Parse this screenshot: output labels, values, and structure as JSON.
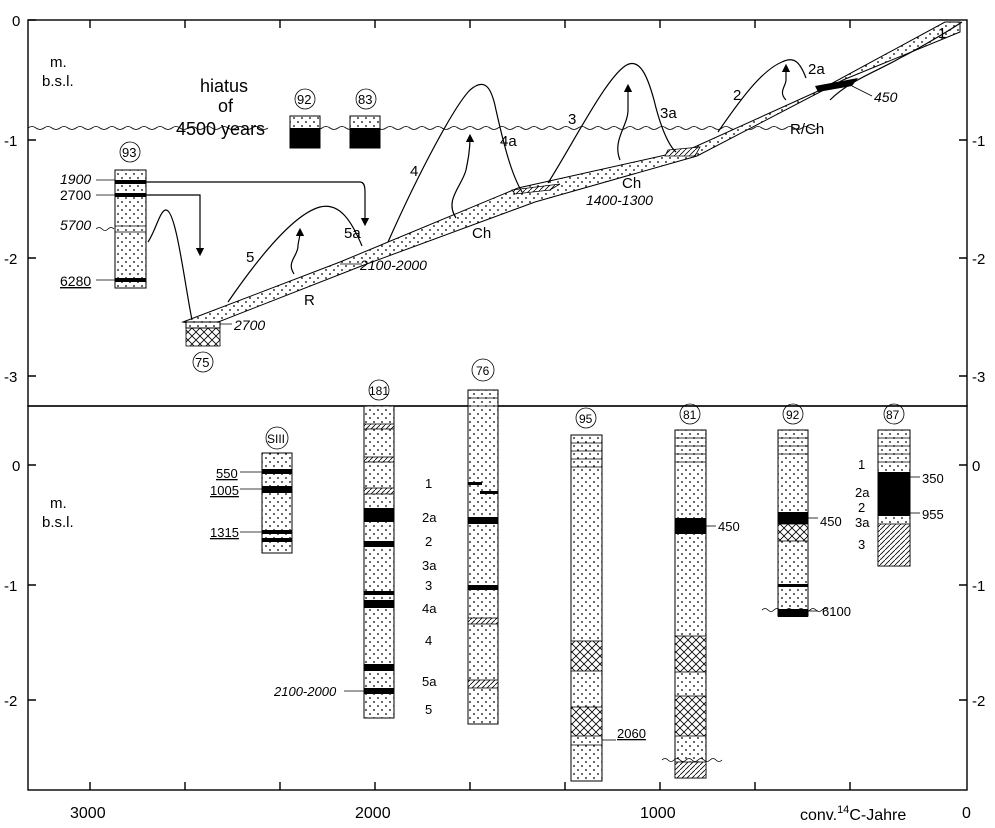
{
  "top_panel": {
    "y_axis_label_line1": "m.",
    "y_axis_label_line2": "b.s.l.",
    "y_ticks": [
      "0",
      "-1",
      "-2",
      "-3"
    ],
    "right_y_ticks": [
      "0",
      "-1",
      "-2",
      "-3"
    ],
    "hiatus_line1": "hiatus",
    "hiatus_line2": "of",
    "hiatus_line3": "4500 years",
    "core_labels": [
      "93",
      "92",
      "83",
      "75"
    ],
    "core93_ages": [
      "1900",
      "2700",
      "5700",
      "6280"
    ],
    "beach_labels": [
      "R",
      "Ch",
      "Ch",
      "R/Ch"
    ],
    "age_labels": [
      "2700",
      "2100-2000",
      "1400-1300",
      "450"
    ],
    "dune_numbers": [
      "1",
      "2",
      "2a",
      "3",
      "3a",
      "4",
      "4a",
      "5",
      "5a"
    ]
  },
  "bottom_panel": {
    "y_axis_label_line1": "m.",
    "y_axis_label_line2": "b.s.l.",
    "y_ticks": [
      "0",
      "-1",
      "-2"
    ],
    "right_y_ticks": [
      "0",
      "-1",
      "-2"
    ],
    "core_labels": [
      "SIII",
      "181",
      "76",
      "95",
      "81",
      "92",
      "87"
    ],
    "siii_ages": [
      "550",
      "1005",
      "1315"
    ],
    "core181_layers": [
      "1",
      "2a",
      "2",
      "3a",
      "3",
      "4a",
      "4",
      "5a",
      "5"
    ],
    "core181_age": "2100-2000",
    "core95_age": "2060",
    "core81_age": "450",
    "core92_ages": [
      "450",
      "6100"
    ],
    "core87_ages": [
      "350",
      "955"
    ],
    "core87_layers": [
      "1",
      "2a",
      "2",
      "3a",
      "3"
    ]
  },
  "x_axis": {
    "ticks": [
      "3000",
      "2000",
      "1000",
      "0"
    ],
    "label_prefix": "conv.",
    "label_sup": "14",
    "label_suffix": "C-Jahre"
  }
}
